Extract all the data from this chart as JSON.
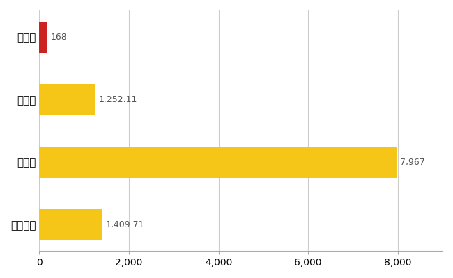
{
  "categories": [
    "明和町",
    "県平均",
    "県最大",
    "全国平均"
  ],
  "values": [
    168,
    1252.11,
    7967,
    1409.71
  ],
  "labels": [
    "168",
    "1,252.11",
    "7,967",
    "1,409.71"
  ],
  "colors": [
    "#cc2222",
    "#f5c518",
    "#f5c518",
    "#f5c518"
  ],
  "xlim": [
    0,
    9000
  ],
  "xticks": [
    0,
    2000,
    4000,
    6000,
    8000
  ],
  "background_color": "#ffffff",
  "grid_color": "#cccccc",
  "label_color": "#555555",
  "bar_height": 0.5
}
